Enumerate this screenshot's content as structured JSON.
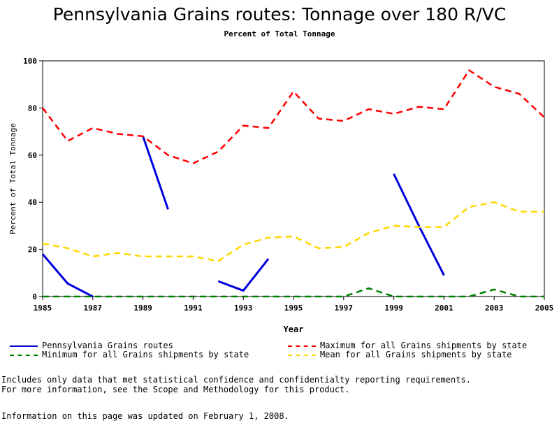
{
  "title": "Pennsylvania Grains routes: Tonnage over 180 R/VC",
  "subtitle": "Percent of Total Tonnage",
  "chart_data": {
    "type": "line",
    "title": "Pennsylvania Grains routes: Tonnage over 180 R/VC",
    "subtitle": "Percent of Total Tonnage",
    "xlabel": "Year",
    "ylabel": "Percent of Total Tonnage",
    "xlim": [
      1985,
      2005
    ],
    "ylim": [
      0,
      100
    ],
    "xticks": [
      1985,
      1987,
      1989,
      1991,
      1993,
      1995,
      1997,
      1999,
      2001,
      2003,
      2005
    ],
    "yticks": [
      0,
      20,
      40,
      60,
      80,
      100
    ],
    "x": [
      1985,
      1986,
      1987,
      1988,
      1989,
      1990,
      1991,
      1992,
      1993,
      1994,
      1995,
      1996,
      1997,
      1998,
      1999,
      2000,
      2001,
      2002,
      2003,
      2004,
      2005
    ],
    "series": [
      {
        "name": "Pennsylvania Grains routes",
        "color": "#0000dd",
        "style": "solid",
        "values": [
          18,
          5.5,
          0,
          null,
          68,
          37,
          null,
          6.5,
          2.5,
          16,
          null,
          null,
          null,
          null,
          52,
          30,
          9,
          null,
          null,
          null,
          null
        ]
      },
      {
        "name": "Maximum for all Grains shipments by state",
        "color": "#ff0000",
        "style": "dashed",
        "values": [
          80,
          66,
          71.5,
          69,
          68,
          60,
          56.5,
          61.5,
          72.5,
          71.5,
          87,
          75.5,
          74.5,
          79.5,
          77.5,
          80.5,
          79.5,
          96,
          89,
          86,
          76
        ]
      },
      {
        "name": "Minimum for all Grains shipments by state",
        "color": "#008000",
        "style": "dashed",
        "values": [
          0,
          0,
          0,
          0,
          0,
          0,
          0,
          0,
          0,
          0,
          0,
          0,
          0,
          3.5,
          0,
          0,
          0,
          0,
          3,
          0,
          0
        ]
      },
      {
        "name": "Mean for all Grains shipments by state",
        "color": "#ffd700",
        "style": "dashed",
        "values": [
          22.5,
          20.5,
          17,
          18.5,
          17,
          17,
          17,
          15,
          22,
          25,
          25.5,
          20.5,
          21,
          27,
          30,
          29.5,
          29.5,
          38,
          40,
          36,
          36
        ]
      }
    ]
  },
  "legend": {
    "items": [
      "Pennsylvania Grains routes",
      "Maximum for all Grains shipments by state",
      "Minimum for all Grains shipments by state",
      "Mean for all Grains shipments by state"
    ]
  },
  "notes": {
    "line1": "Includes only data that met statistical confidence and confidentialty reporting requirements.",
    "line2": "For more information, see the Scope and Methodology for this product."
  },
  "updated": "Information on this page was updated on February 1, 2008."
}
